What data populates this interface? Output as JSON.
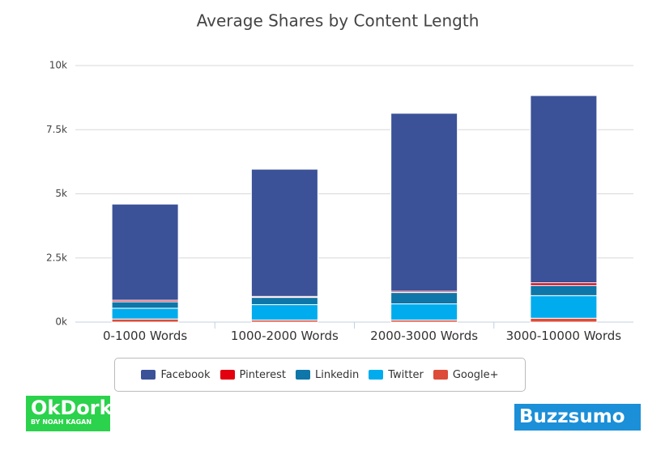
{
  "chart_data": {
    "type": "stacked_bar",
    "title": "Average Shares by Content Length",
    "categories": [
      "0-1000 Words",
      "1000-2000 Words",
      "2000-3000 Words",
      "3000-10000 Words"
    ],
    "series": [
      {
        "name": "Facebook",
        "color": "#3b5298",
        "values": [
          3750,
          4960,
          6940,
          7300
        ]
      },
      {
        "name": "Pinterest",
        "color": "#e3000f",
        "values": [
          60,
          40,
          50,
          100
        ]
      },
      {
        "name": "Linkedin",
        "color": "#0e76a8",
        "values": [
          250,
          280,
          440,
          400
        ]
      },
      {
        "name": "Twitter",
        "color": "#00aced",
        "values": [
          420,
          600,
          630,
          880
        ]
      },
      {
        "name": "Google+",
        "color": "#dd4b39",
        "values": [
          120,
          80,
          80,
          150
        ]
      }
    ],
    "ylim": [
      0,
      10000
    ],
    "yticks": [
      {
        "value": 0,
        "label": "0k"
      },
      {
        "value": 2500,
        "label": "2.5k"
      },
      {
        "value": 5000,
        "label": "5k"
      },
      {
        "value": 7500,
        "label": "7.5k"
      },
      {
        "value": 10000,
        "label": "10k"
      }
    ],
    "grid": true
  },
  "logos": {
    "left": "OkDork",
    "left_sub": "BY NOAH KAGAN",
    "right": "Buzzsumo"
  }
}
